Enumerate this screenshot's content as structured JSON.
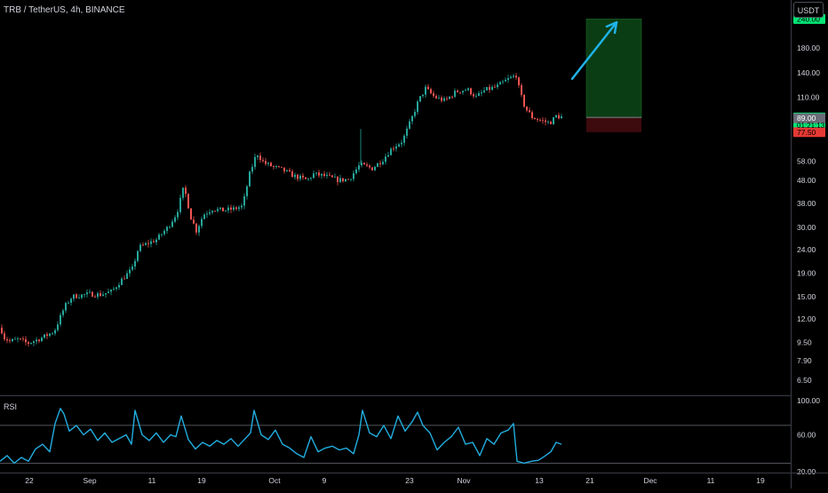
{
  "header": {
    "symbol": "TRB / TetherUS, 4h, BINANCE",
    "currency": "USDT"
  },
  "colors": {
    "up": "#26a69a",
    "down": "#ef5350",
    "rsi": "#22aee0",
    "arrow": "#1fb3e8",
    "target_zone": "#0b3d14",
    "stop_zone": "#3d0a0e",
    "axis_text": "#d1d4dc",
    "tag_green": "#00e676",
    "tag_red": "#e53935",
    "tag_gray": "#6a6d78"
  },
  "chart_data": [
    {
      "type": "candlestick",
      "y_scale": "log",
      "ylim": [
        5.6,
        290
      ],
      "x_ticks": [
        "22",
        "Sep",
        "11",
        "19",
        "Oct",
        "9",
        "23",
        "Nov",
        "13",
        "21",
        "Dec",
        "11",
        "19"
      ],
      "y_ticks": [
        "240.00",
        "180.00",
        "140.00",
        "110.00",
        "89.78",
        "89.00",
        "77.50",
        "58.00",
        "48.00",
        "38.00",
        "30.00",
        "24.00",
        "19.00",
        "15.00",
        "12.00",
        "9.50",
        "7.90",
        "6.50"
      ],
      "price_path": [
        [
          0,
          11.0
        ],
        [
          3,
          10.0
        ],
        [
          10,
          9.6
        ],
        [
          20,
          9.8
        ],
        [
          30,
          9.4
        ],
        [
          45,
          9.9
        ],
        [
          60,
          10.6
        ],
        [
          72,
          13.6
        ],
        [
          80,
          15.0
        ],
        [
          90,
          15.2
        ],
        [
          100,
          15.4
        ],
        [
          112,
          15.3
        ],
        [
          125,
          15.8
        ],
        [
          135,
          17.6
        ],
        [
          148,
          19.8
        ],
        [
          155,
          24.5
        ],
        [
          165,
          25.5
        ],
        [
          175,
          26.5
        ],
        [
          188,
          30.0
        ],
        [
          198,
          34.5
        ],
        [
          206,
          45.0
        ],
        [
          214,
          33.0
        ],
        [
          220,
          29.0
        ],
        [
          228,
          34.0
        ],
        [
          238,
          36.0
        ],
        [
          250,
          35.5
        ],
        [
          262,
          36.0
        ],
        [
          272,
          37.0
        ],
        [
          280,
          51.0
        ],
        [
          288,
          63.0
        ],
        [
          296,
          57.0
        ],
        [
          306,
          55.0
        ],
        [
          318,
          53.0
        ],
        [
          330,
          50.0
        ],
        [
          345,
          48.0
        ],
        [
          352,
          51.0
        ],
        [
          365,
          50.0
        ],
        [
          380,
          48.0
        ],
        [
          392,
          48.5
        ],
        [
          404,
          56.0
        ],
        [
          418,
          54.0
        ],
        [
          430,
          59.0
        ],
        [
          440,
          66.0
        ],
        [
          452,
          71.0
        ],
        [
          462,
          88.0
        ],
        [
          470,
          106.0
        ],
        [
          478,
          120.0
        ],
        [
          488,
          110.0
        ],
        [
          500,
          106.0
        ],
        [
          512,
          116.0
        ],
        [
          525,
          119.0
        ],
        [
          535,
          110.0
        ],
        [
          545,
          118.0
        ],
        [
          558,
          122.0
        ],
        [
          570,
          131.0
        ],
        [
          580,
          137.0
        ],
        [
          584,
          116.0
        ],
        [
          590,
          99.0
        ],
        [
          598,
          90.0
        ],
        [
          608,
          87.0
        ],
        [
          618,
          85.0
        ],
        [
          625,
          91.0
        ],
        [
          632,
          90.0
        ]
      ],
      "annotations": {
        "entry": 89.78,
        "target": 240.0,
        "stop": 77.5,
        "arrow_from": [
          644,
          132.0
        ],
        "arrow_to": [
          694,
          232.0
        ]
      }
    },
    {
      "type": "line",
      "label": "RSI",
      "ylim": [
        20,
        100
      ],
      "y_ticks": [
        "100.00",
        "60.00",
        "20.00"
      ],
      "bands": [
        70,
        30
      ],
      "x": [
        0,
        8,
        16,
        24,
        32,
        40,
        48,
        56,
        62,
        68,
        72,
        78,
        86,
        94,
        102,
        110,
        118,
        126,
        134,
        142,
        148,
        152,
        160,
        168,
        176,
        184,
        192,
        198,
        204,
        212,
        220,
        228,
        236,
        244,
        252,
        260,
        268,
        276,
        282,
        286,
        294,
        302,
        310,
        318,
        326,
        334,
        342,
        350,
        358,
        366,
        374,
        382,
        390,
        398,
        404,
        408,
        416,
        424,
        432,
        440,
        448,
        456,
        464,
        470,
        476,
        484,
        492,
        500,
        508,
        516,
        524,
        532,
        540,
        548,
        556,
        564,
        572,
        578,
        582,
        590,
        598,
        606,
        614,
        620,
        626,
        632
      ],
      "y": [
        32,
        38,
        30,
        36,
        32,
        45,
        50,
        42,
        72,
        88,
        82,
        64,
        70,
        60,
        66,
        54,
        62,
        52,
        56,
        60,
        50,
        86,
        60,
        54,
        62,
        52,
        60,
        58,
        80,
        55,
        45,
        52,
        48,
        54,
        50,
        56,
        48,
        56,
        62,
        86,
        60,
        55,
        65,
        50,
        46,
        40,
        36,
        58,
        42,
        46,
        48,
        44,
        46,
        40,
        60,
        86,
        62,
        58,
        70,
        56,
        80,
        64,
        74,
        84,
        70,
        62,
        44,
        52,
        58,
        68,
        50,
        52,
        38,
        56,
        50,
        62,
        65,
        72,
        32,
        30,
        32,
        33,
        38,
        42,
        52,
        50
      ]
    }
  ]
}
